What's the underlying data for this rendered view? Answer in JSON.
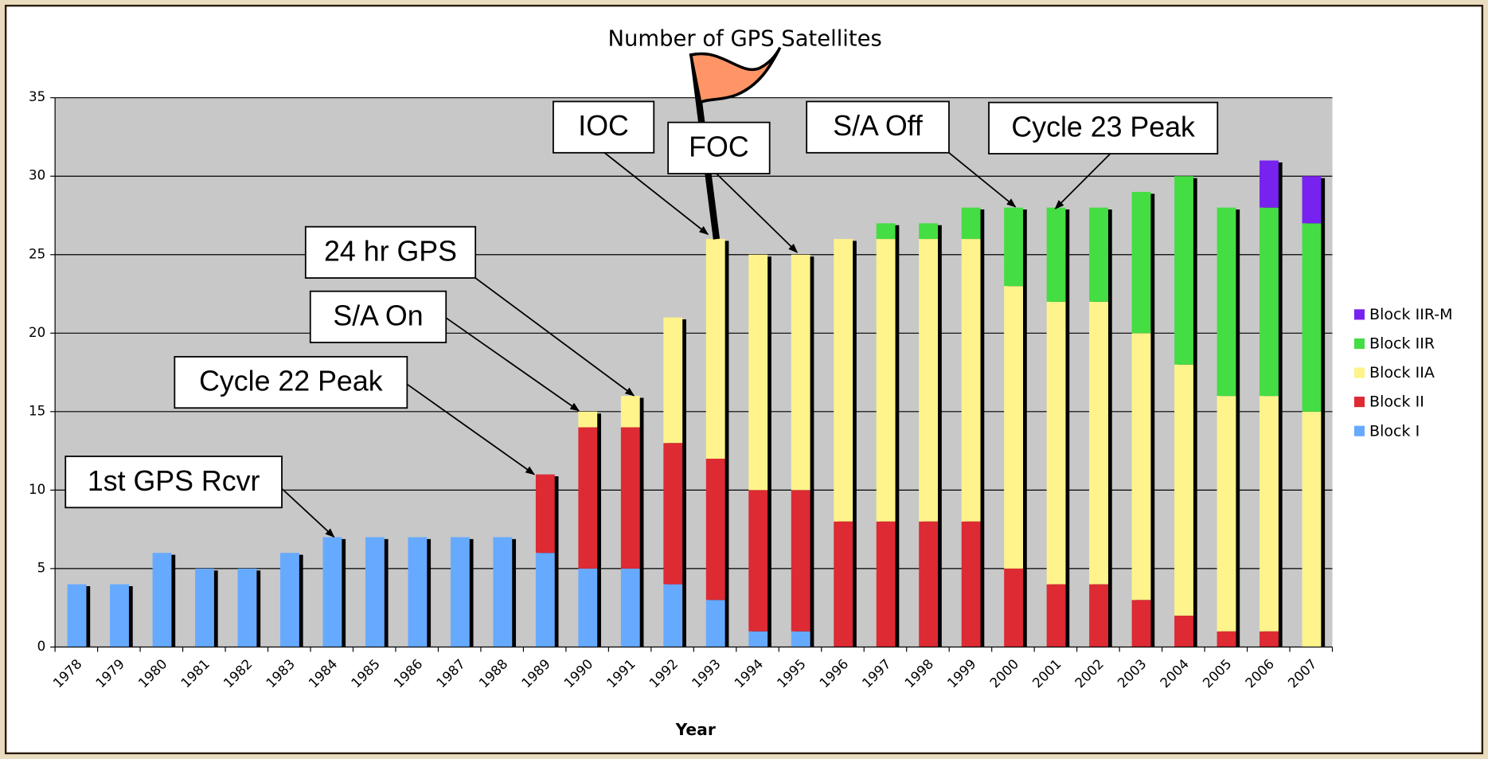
{
  "chart_data": {
    "type": "stacked_bar",
    "title": "Number of GPS Satellites",
    "x_label": "Year",
    "categories": [
      "1978",
      "1979",
      "1980",
      "1981",
      "1982",
      "1983",
      "1984",
      "1985",
      "1986",
      "1987",
      "1988",
      "1989",
      "1990",
      "1991",
      "1992",
      "1993",
      "1994",
      "1995",
      "1996",
      "1997",
      "1998",
      "1999",
      "2000",
      "2001",
      "2002",
      "2003",
      "2004",
      "2005",
      "2006",
      "2007"
    ],
    "series": [
      {
        "name": "Block I",
        "color": "#66aaff",
        "values": [
          4,
          4,
          6,
          5,
          5,
          6,
          7,
          7,
          7,
          7,
          7,
          6,
          5,
          5,
          4,
          3,
          1,
          1,
          0,
          0,
          0,
          0,
          0,
          0,
          0,
          0,
          0,
          0,
          0,
          0
        ]
      },
      {
        "name": "Block II",
        "color": "#dd2a33",
        "values": [
          0,
          0,
          0,
          0,
          0,
          0,
          0,
          0,
          0,
          0,
          0,
          5,
          9,
          9,
          9,
          9,
          9,
          9,
          8,
          8,
          8,
          8,
          5,
          4,
          4,
          3,
          2,
          1,
          1,
          0
        ]
      },
      {
        "name": "Block IIA",
        "color": "#fff38c",
        "values": [
          0,
          0,
          0,
          0,
          0,
          0,
          0,
          0,
          0,
          0,
          0,
          0,
          1,
          2,
          8,
          14,
          15,
          15,
          18,
          18,
          18,
          18,
          18,
          18,
          18,
          17,
          16,
          15,
          15,
          15
        ]
      },
      {
        "name": "Block IIR",
        "color": "#44dd44",
        "values": [
          0,
          0,
          0,
          0,
          0,
          0,
          0,
          0,
          0,
          0,
          0,
          0,
          0,
          0,
          0,
          0,
          0,
          0,
          0,
          1,
          1,
          2,
          5,
          6,
          6,
          9,
          12,
          12,
          12,
          12
        ]
      },
      {
        "name": "Block IIR-M",
        "color": "#7722ee",
        "values": [
          0,
          0,
          0,
          0,
          0,
          0,
          0,
          0,
          0,
          0,
          0,
          0,
          0,
          0,
          0,
          0,
          0,
          0,
          0,
          0,
          0,
          0,
          0,
          0,
          0,
          0,
          0,
          0,
          3,
          3
        ]
      }
    ],
    "ylim": [
      0,
      35
    ],
    "yticks": [
      0,
      5,
      10,
      15,
      20,
      25,
      30,
      35
    ],
    "grid": true,
    "annotations": [
      "1st GPS Rcvr",
      "Cycle 22 Peak",
      "S/A On",
      "24 hr GPS",
      "IOC",
      "FOC",
      "S/A Off",
      "Cycle 23 Peak"
    ]
  }
}
